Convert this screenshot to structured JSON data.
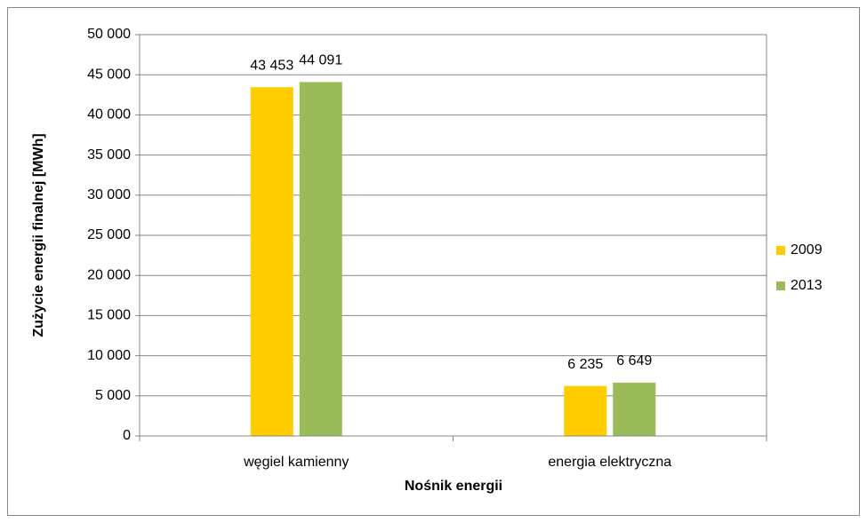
{
  "chart_data": {
    "type": "bar",
    "xlabel": "Nośnik energii",
    "ylabel": "Zużycie energii finalnej [MWh]",
    "categories": [
      "węgiel kamienny",
      "energia elektryczna"
    ],
    "series": [
      {
        "name": "2009",
        "color": "#ffcc00",
        "values": [
          43453,
          6235
        ],
        "value_labels": [
          "43 453",
          "6 235"
        ]
      },
      {
        "name": "2013",
        "color": "#9bbb59",
        "values": [
          44091,
          6649
        ],
        "value_labels": [
          "44 091",
          "6 649"
        ]
      }
    ],
    "ylim": [
      0,
      50000
    ],
    "yticks": [
      0,
      {
        "value": 5000,
        "label": "5 000"
      },
      {
        "value": 10000,
        "label": "10 000"
      },
      {
        "value": 15000,
        "label": "15 000"
      },
      {
        "value": 20000,
        "label": "20 000"
      },
      {
        "value": 25000,
        "label": "25 000"
      },
      {
        "value": 30000,
        "label": "30 000"
      },
      {
        "value": 35000,
        "label": "35 000"
      },
      {
        "value": 40000,
        "label": "40 000"
      },
      {
        "value": 45000,
        "label": "45 000"
      },
      {
        "value": 50000,
        "label": "50 000"
      }
    ],
    "grid": true,
    "legend": "right"
  }
}
